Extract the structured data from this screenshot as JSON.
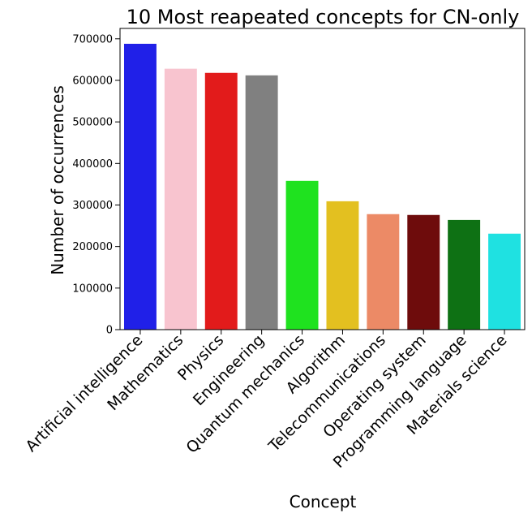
{
  "chart_data": {
    "type": "bar",
    "title": "10 Most reapeated concepts for CN-only",
    "xlabel": "Concept",
    "ylabel": "Number of occurrences",
    "ylim": [
      0,
      725000
    ],
    "yticks": [
      0,
      100000,
      200000,
      300000,
      400000,
      500000,
      600000,
      700000
    ],
    "grid": false,
    "categories": [
      "Artificial intelligence",
      "Mathematics",
      "Physics",
      "Engineering",
      "Quantum mechanics",
      "Algorithm",
      "Telecommunications",
      "Operating system",
      "Programming language",
      "Materials science"
    ],
    "values": [
      688000,
      628000,
      618000,
      612000,
      358000,
      309000,
      278000,
      276000,
      264000,
      231000
    ],
    "colors": [
      "#2020e8",
      "#f8c4cf",
      "#e21b1b",
      "#808080",
      "#1fe21f",
      "#e3c020",
      "#ec8a66",
      "#6e0c0c",
      "#0e7114",
      "#1fe1e1"
    ]
  }
}
